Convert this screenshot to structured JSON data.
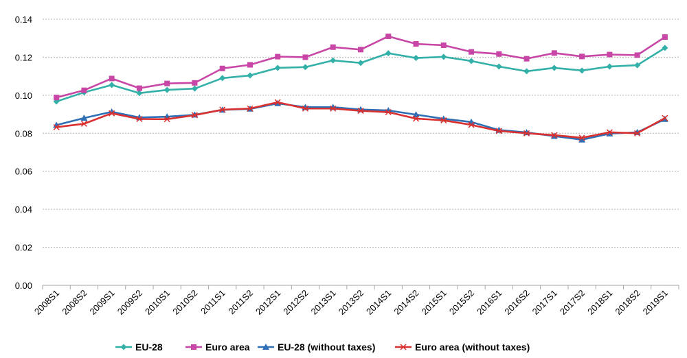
{
  "chart_data": {
    "type": "line",
    "title": "",
    "xlabel": "",
    "ylabel": "",
    "ylim": [
      0,
      0.14
    ],
    "yticks": [
      "0.00",
      "0.02",
      "0.04",
      "0.06",
      "0.08",
      "0.10",
      "0.12",
      "0.14"
    ],
    "grid": true,
    "legend_position": "bottom",
    "categories": [
      "2008S1",
      "2008S2",
      "2009S1",
      "2009S2",
      "2010S1",
      "2010S2",
      "2011S1",
      "2011S2",
      "2012S1",
      "2012S2",
      "2013S1",
      "2013S2",
      "2014S1",
      "2014S2",
      "2015S1",
      "2015S2",
      "2016S1",
      "2016S2",
      "2017S1",
      "2017S2",
      "2018S1",
      "2018S2",
      "2019S1"
    ],
    "series": [
      {
        "name": "EU-28",
        "color": "#33b0a8",
        "marker": "diamond",
        "values": [
          0.0967,
          0.1015,
          0.1054,
          0.1011,
          0.1028,
          0.1035,
          0.109,
          0.1104,
          0.1144,
          0.1148,
          0.1183,
          0.117,
          0.1221,
          0.1196,
          0.1202,
          0.118,
          0.1151,
          0.1126,
          0.1144,
          0.113,
          0.1151,
          0.1158,
          0.1249
        ]
      },
      {
        "name": "Euro area",
        "color": "#c847a6",
        "marker": "square",
        "values": [
          0.0988,
          0.1026,
          0.1088,
          0.1037,
          0.1062,
          0.1065,
          0.1141,
          0.116,
          0.1203,
          0.12,
          0.1253,
          0.124,
          0.131,
          0.127,
          0.1263,
          0.1228,
          0.1217,
          0.1192,
          0.1222,
          0.1204,
          0.1214,
          0.1211,
          0.1306
        ]
      },
      {
        "name": "EU-28 (without taxes)",
        "color": "#2f6fb5",
        "marker": "triangle",
        "values": [
          0.0843,
          0.088,
          0.0913,
          0.0883,
          0.0887,
          0.0897,
          0.0923,
          0.0928,
          0.0957,
          0.0937,
          0.0937,
          0.0925,
          0.092,
          0.0898,
          0.0876,
          0.0859,
          0.0817,
          0.0804,
          0.0785,
          0.0766,
          0.0798,
          0.0805,
          0.0874
        ]
      },
      {
        "name": "Euro area (without taxes)",
        "color": "#d93030",
        "marker": "x",
        "values": [
          0.0832,
          0.085,
          0.0905,
          0.0875,
          0.0874,
          0.0895,
          0.0924,
          0.093,
          0.0963,
          0.093,
          0.093,
          0.0918,
          0.0911,
          0.0877,
          0.0868,
          0.0844,
          0.0812,
          0.08,
          0.079,
          0.0776,
          0.0805,
          0.08,
          0.088
        ]
      }
    ]
  }
}
